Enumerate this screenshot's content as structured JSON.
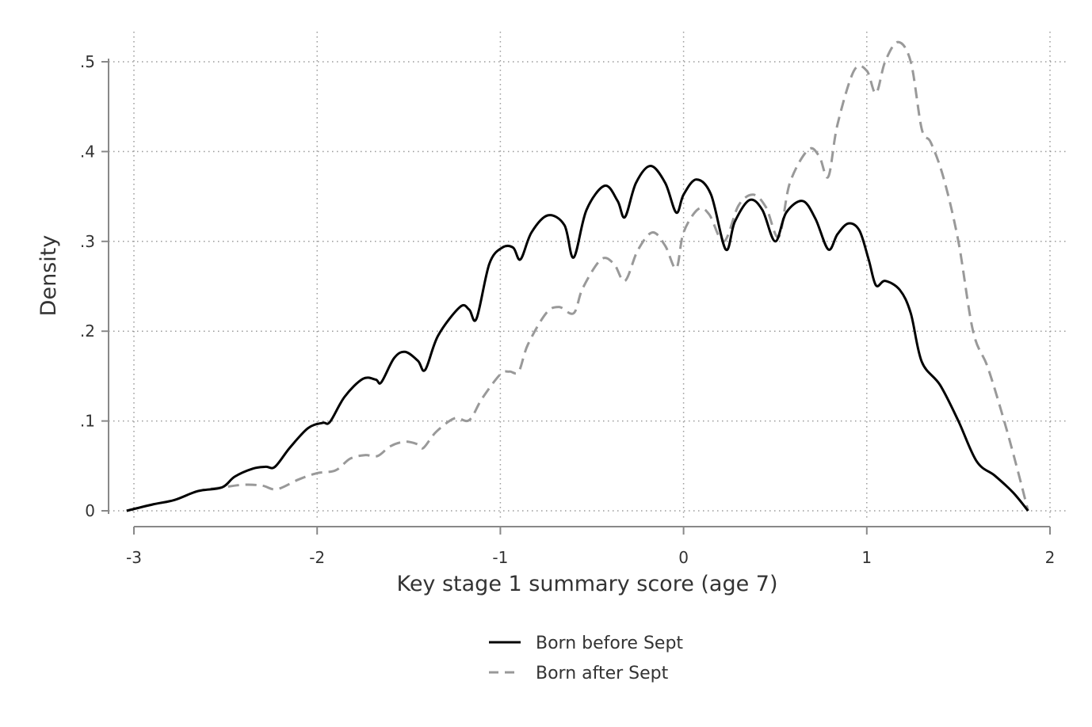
{
  "chart_data": {
    "type": "line",
    "title": "",
    "xlabel": "Key stage 1 summary score (age 7)",
    "ylabel": "Density",
    "xlim": [
      -3.05,
      2.05
    ],
    "ylim": [
      0,
      0.5
    ],
    "x_ticks": [
      -3,
      -2,
      -1,
      0,
      1,
      2
    ],
    "x_tick_labels": [
      "-3",
      "-2",
      "-1",
      "0",
      "1",
      "2"
    ],
    "y_ticks": [
      0,
      0.1,
      0.2,
      0.3,
      0.4,
      0.5
    ],
    "y_tick_labels": [
      "0",
      ".1",
      ".2",
      ".3",
      ".4",
      ".5"
    ],
    "grid": true,
    "legend_position": "bottom-center",
    "series": [
      {
        "name": "Born before Sept",
        "color": "#000000",
        "style": "solid",
        "points": [
          [
            -3.04,
            0.0
          ],
          [
            -2.9,
            0.007
          ],
          [
            -2.78,
            0.012
          ],
          [
            -2.65,
            0.022
          ],
          [
            -2.52,
            0.026
          ],
          [
            -2.45,
            0.038
          ],
          [
            -2.35,
            0.047
          ],
          [
            -2.28,
            0.049
          ],
          [
            -2.23,
            0.049
          ],
          [
            -2.15,
            0.07
          ],
          [
            -2.05,
            0.092
          ],
          [
            -1.97,
            0.098
          ],
          [
            -1.93,
            0.099
          ],
          [
            -1.85,
            0.127
          ],
          [
            -1.75,
            0.147
          ],
          [
            -1.68,
            0.146
          ],
          [
            -1.65,
            0.143
          ],
          [
            -1.58,
            0.17
          ],
          [
            -1.52,
            0.177
          ],
          [
            -1.45,
            0.167
          ],
          [
            -1.41,
            0.157
          ],
          [
            -1.34,
            0.195
          ],
          [
            -1.22,
            0.227
          ],
          [
            -1.17,
            0.224
          ],
          [
            -1.13,
            0.214
          ],
          [
            -1.06,
            0.275
          ],
          [
            -0.99,
            0.293
          ],
          [
            -0.93,
            0.293
          ],
          [
            -0.89,
            0.28
          ],
          [
            -0.83,
            0.31
          ],
          [
            -0.74,
            0.329
          ],
          [
            -0.65,
            0.318
          ],
          [
            -0.6,
            0.282
          ],
          [
            -0.53,
            0.335
          ],
          [
            -0.43,
            0.362
          ],
          [
            -0.36,
            0.345
          ],
          [
            -0.32,
            0.327
          ],
          [
            -0.26,
            0.365
          ],
          [
            -0.18,
            0.384
          ],
          [
            -0.1,
            0.365
          ],
          [
            -0.04,
            0.332
          ],
          [
            0.0,
            0.352
          ],
          [
            0.07,
            0.369
          ],
          [
            0.15,
            0.352
          ],
          [
            0.23,
            0.291
          ],
          [
            0.28,
            0.322
          ],
          [
            0.36,
            0.346
          ],
          [
            0.43,
            0.335
          ],
          [
            0.5,
            0.3
          ],
          [
            0.56,
            0.332
          ],
          [
            0.65,
            0.345
          ],
          [
            0.72,
            0.325
          ],
          [
            0.79,
            0.291
          ],
          [
            0.84,
            0.308
          ],
          [
            0.9,
            0.32
          ],
          [
            0.96,
            0.312
          ],
          [
            1.01,
            0.28
          ],
          [
            1.05,
            0.251
          ],
          [
            1.1,
            0.256
          ],
          [
            1.18,
            0.246
          ],
          [
            1.24,
            0.22
          ],
          [
            1.3,
            0.166
          ],
          [
            1.4,
            0.14
          ],
          [
            1.5,
            0.1
          ],
          [
            1.6,
            0.055
          ],
          [
            1.7,
            0.039
          ],
          [
            1.8,
            0.02
          ],
          [
            1.88,
            0.0
          ]
        ]
      },
      {
        "name": "Born after Sept",
        "color": "#999999",
        "style": "dashed",
        "points": [
          [
            -3.04,
            0.0
          ],
          [
            -2.9,
            0.007
          ],
          [
            -2.78,
            0.012
          ],
          [
            -2.65,
            0.022
          ],
          [
            -2.52,
            0.026
          ],
          [
            -2.4,
            0.029
          ],
          [
            -2.3,
            0.028
          ],
          [
            -2.22,
            0.024
          ],
          [
            -2.1,
            0.035
          ],
          [
            -2.0,
            0.042
          ],
          [
            -1.9,
            0.045
          ],
          [
            -1.82,
            0.058
          ],
          [
            -1.74,
            0.062
          ],
          [
            -1.67,
            0.061
          ],
          [
            -1.6,
            0.072
          ],
          [
            -1.52,
            0.077
          ],
          [
            -1.45,
            0.074
          ],
          [
            -1.42,
            0.07
          ],
          [
            -1.35,
            0.088
          ],
          [
            -1.25,
            0.103
          ],
          [
            -1.17,
            0.101
          ],
          [
            -1.1,
            0.125
          ],
          [
            -1.0,
            0.152
          ],
          [
            -0.95,
            0.155
          ],
          [
            -0.9,
            0.155
          ],
          [
            -0.85,
            0.185
          ],
          [
            -0.75,
            0.22
          ],
          [
            -0.68,
            0.227
          ],
          [
            -0.6,
            0.22
          ],
          [
            -0.55,
            0.248
          ],
          [
            -0.45,
            0.28
          ],
          [
            -0.38,
            0.275
          ],
          [
            -0.32,
            0.256
          ],
          [
            -0.25,
            0.29
          ],
          [
            -0.17,
            0.31
          ],
          [
            -0.1,
            0.295
          ],
          [
            -0.04,
            0.27
          ],
          [
            0.0,
            0.31
          ],
          [
            0.08,
            0.336
          ],
          [
            0.14,
            0.33
          ],
          [
            0.22,
            0.3
          ],
          [
            0.3,
            0.34
          ],
          [
            0.38,
            0.352
          ],
          [
            0.45,
            0.338
          ],
          [
            0.52,
            0.305
          ],
          [
            0.58,
            0.365
          ],
          [
            0.68,
            0.402
          ],
          [
            0.74,
            0.395
          ],
          [
            0.79,
            0.372
          ],
          [
            0.84,
            0.43
          ],
          [
            0.93,
            0.49
          ],
          [
            1.0,
            0.49
          ],
          [
            1.05,
            0.465
          ],
          [
            1.1,
            0.5
          ],
          [
            1.17,
            0.522
          ],
          [
            1.24,
            0.5
          ],
          [
            1.3,
            0.425
          ],
          [
            1.35,
            0.41
          ],
          [
            1.42,
            0.37
          ],
          [
            1.5,
            0.3
          ],
          [
            1.58,
            0.2
          ],
          [
            1.66,
            0.16
          ],
          [
            1.75,
            0.1
          ],
          [
            1.83,
            0.04
          ],
          [
            1.88,
            0.0
          ]
        ]
      }
    ]
  }
}
